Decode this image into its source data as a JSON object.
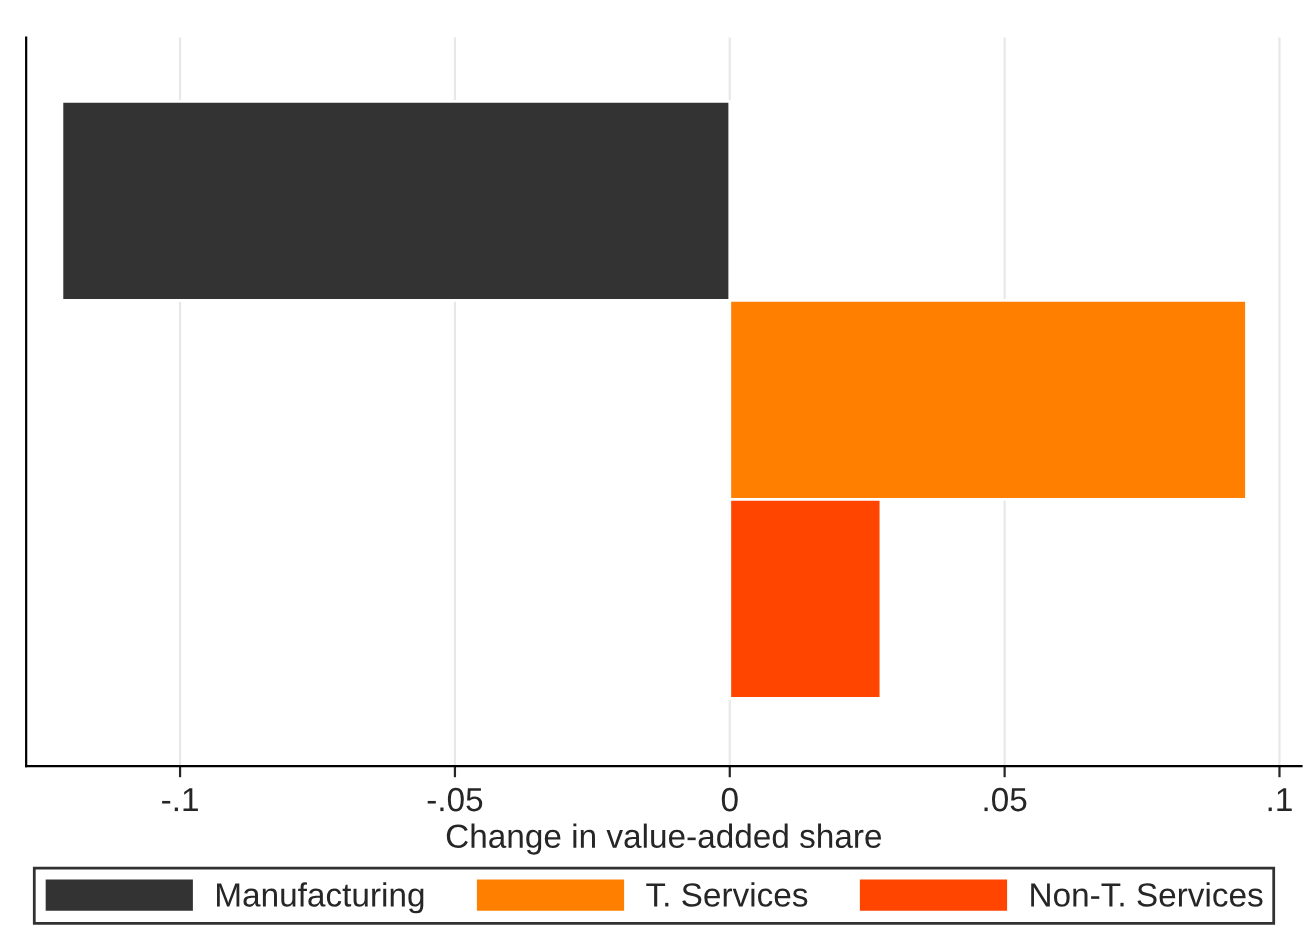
{
  "chart_data": {
    "type": "bar",
    "orientation": "horizontal",
    "xlabel": "Change in value-added share",
    "categories": [
      null,
      null,
      null
    ],
    "series": [
      {
        "name": "Manufacturing",
        "color": "#333333",
        "values": [
          -0.1215,
          null,
          null
        ]
      },
      {
        "name": "T. Services",
        "color": "#ff8000",
        "values": [
          null,
          0.094,
          null
        ]
      },
      {
        "name": "Non-T. Services",
        "color": "#ff4500",
        "values": [
          null,
          null,
          0.0275
        ]
      }
    ],
    "xlim": [
      -0.128,
      0.104
    ],
    "xticks": [
      {
        "value": -0.1,
        "label": "-.1"
      },
      {
        "value": -0.05,
        "label": "-.05"
      },
      0,
      {
        "value": 0.05,
        "label": ".05"
      },
      {
        "value": 0.1,
        "label": ".1"
      }
    ],
    "grid": "x",
    "legend": "bottom",
    "tick_labels": "x"
  }
}
